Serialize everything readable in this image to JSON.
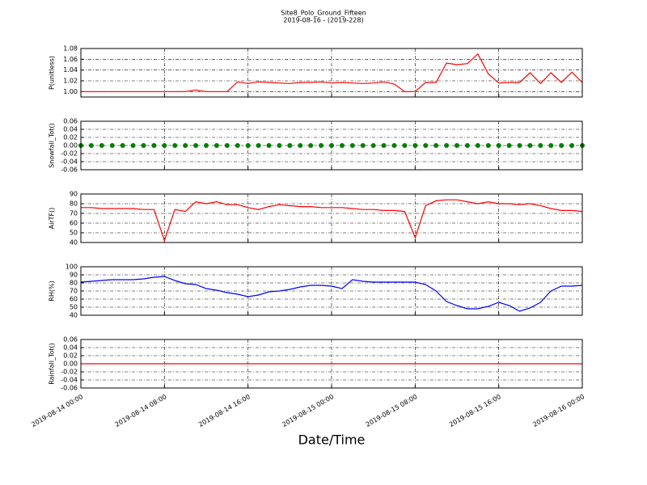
{
  "chart_data": {
    "title": "Site8_Polo_Ground_Fifteen",
    "subtitle": "2019-08-16 - (2019-228)",
    "xlabel": "Date/Time",
    "x": [
      "2019-08-14 00:00",
      "2019-08-14 01:00",
      "2019-08-14 02:00",
      "2019-08-14 03:00",
      "2019-08-14 04:00",
      "2019-08-14 05:00",
      "2019-08-14 06:00",
      "2019-08-14 07:00",
      "2019-08-14 08:00",
      "2019-08-14 09:00",
      "2019-08-14 10:00",
      "2019-08-14 11:00",
      "2019-08-14 12:00",
      "2019-08-14 13:00",
      "2019-08-14 14:00",
      "2019-08-14 15:00",
      "2019-08-14 16:00",
      "2019-08-14 17:00",
      "2019-08-14 18:00",
      "2019-08-14 19:00",
      "2019-08-14 20:00",
      "2019-08-14 21:00",
      "2019-08-14 22:00",
      "2019-08-14 23:00",
      "2019-08-15 00:00",
      "2019-08-15 01:00",
      "2019-08-15 02:00",
      "2019-08-15 03:00",
      "2019-08-15 04:00",
      "2019-08-15 05:00",
      "2019-08-15 06:00",
      "2019-08-15 07:00",
      "2019-08-15 08:00",
      "2019-08-15 09:00",
      "2019-08-15 10:00",
      "2019-08-15 11:00",
      "2019-08-15 12:00",
      "2019-08-15 13:00",
      "2019-08-15 14:00",
      "2019-08-15 15:00",
      "2019-08-15 16:00",
      "2019-08-15 17:00",
      "2019-08-15 18:00",
      "2019-08-15 19:00",
      "2019-08-15 20:00",
      "2019-08-15 21:00",
      "2019-08-15 22:00",
      "2019-08-15 23:00",
      "2019-08-16 00:00"
    ],
    "xlim": [
      "2019-08-14 00:00",
      "2019-08-16 00:00"
    ],
    "xticks": [
      "2019-08-14 00:00",
      "2019-08-14 08:00",
      "2019-08-14 16:00",
      "2019-08-15 00:00",
      "2019-08-15 08:00",
      "2019-08-15 16:00",
      "2019-08-16 00:00"
    ],
    "grid": true,
    "panels": [
      {
        "type": "line",
        "ylabel": "P(unitless)",
        "ylim": [
          0.99,
          1.08
        ],
        "yticks": [
          {
            "value": 1.0,
            "label": "1.00"
          },
          {
            "value": 1.02,
            "label": "1.02"
          },
          {
            "value": 1.04,
            "label": "1.04"
          },
          {
            "value": 1.06,
            "label": "1.06"
          },
          {
            "value": 1.08,
            "label": "1.08"
          }
        ],
        "series": [
          {
            "color": "#ff0000",
            "values": [
              1.0,
              1.0,
              1.0,
              1.0,
              1.0,
              1.0,
              1.0,
              1.0,
              1.0,
              1.0,
              1.0,
              1.003,
              1.0,
              1.0,
              1.0,
              1.018,
              1.015,
              1.018,
              1.017,
              1.016,
              1.015,
              1.017,
              1.017,
              1.018,
              1.016,
              1.017,
              1.016,
              1.015,
              1.016,
              1.018,
              1.014,
              1.0,
              1.0,
              1.017,
              1.017,
              1.053,
              1.05,
              1.052,
              1.07,
              1.033,
              1.016,
              1.017,
              1.017,
              1.035,
              1.015,
              1.035,
              1.017,
              1.036,
              1.017
            ]
          }
        ]
      },
      {
        "type": "scatter",
        "ylabel": "Snowfall_Tot()",
        "ylim": [
          -0.06,
          0.06
        ],
        "yticks": [
          {
            "value": -0.06,
            "label": "-0.06"
          },
          {
            "value": -0.04,
            "label": "-0.04"
          },
          {
            "value": -0.02,
            "label": "-0.02"
          },
          {
            "value": 0,
            "label": "0.00"
          },
          {
            "value": 0.02,
            "label": "0.02"
          },
          {
            "value": 0.04,
            "label": "0.04"
          },
          {
            "value": 0.06,
            "label": "0.06"
          }
        ],
        "series": [
          {
            "color": "#008000",
            "values": [
              0,
              0,
              0,
              0,
              0,
              0,
              0,
              0,
              0,
              0,
              0,
              0,
              0,
              0,
              0,
              0,
              0,
              0,
              0,
              0,
              0,
              0,
              0,
              0,
              0,
              0,
              0,
              0,
              0,
              0,
              0,
              0,
              0,
              0,
              0,
              0,
              0,
              0,
              0,
              0,
              0,
              0,
              0,
              0,
              0,
              0,
              0,
              0,
              0
            ]
          }
        ]
      },
      {
        "type": "line",
        "ylabel": "AirTF()",
        "ylim": [
          40,
          90
        ],
        "yticks": [
          40,
          50,
          60,
          70,
          80,
          90
        ],
        "series": [
          {
            "color": "#ff0000",
            "values": [
              76,
              76,
              75,
              75,
              75,
              75,
              74,
              74,
              42,
              74,
              72,
              82,
              80,
              82,
              79,
              79,
              76,
              74,
              77,
              79,
              78,
              77,
              77,
              76,
              76,
              76,
              75,
              74,
              74,
              73,
              73,
              72,
              45,
              78,
              83,
              84,
              84,
              82,
              80,
              82,
              80,
              80,
              79,
              80,
              78,
              75,
              73,
              73,
              72
            ]
          }
        ]
      },
      {
        "type": "line",
        "ylabel": "RH(%)",
        "ylim": [
          40,
          100
        ],
        "yticks": [
          40,
          50,
          60,
          70,
          80,
          90,
          100
        ],
        "series": [
          {
            "color": "#0000ff",
            "values": [
              81,
              82,
              83,
              84,
              84,
              84,
              85,
              87,
              88,
              83,
              79,
              78,
              73,
              71,
              68,
              66,
              63,
              65,
              69,
              70,
              72,
              75,
              77,
              77,
              76,
              73,
              84,
              82,
              81,
              81,
              81,
              81,
              81,
              78,
              70,
              57,
              52,
              48,
              48,
              51,
              56,
              52,
              45,
              49,
              56,
              70,
              76,
              76,
              77
            ]
          }
        ]
      },
      {
        "type": "line",
        "ylabel": "Rainfall_Tot()",
        "ylim": [
          -0.06,
          0.06
        ],
        "yticks": [
          {
            "value": -0.06,
            "label": "-0.06"
          },
          {
            "value": -0.04,
            "label": "-0.04"
          },
          {
            "value": -0.02,
            "label": "-0.02"
          },
          {
            "value": 0,
            "label": "0.00"
          },
          {
            "value": 0.02,
            "label": "0.02"
          },
          {
            "value": 0.04,
            "label": "0.04"
          },
          {
            "value": 0.06,
            "label": "0.06"
          }
        ],
        "series": [
          {
            "color": "#ff0000",
            "values": [
              0,
              0,
              0,
              0,
              0,
              0,
              0,
              0,
              0,
              0,
              0,
              0,
              0,
              0,
              0,
              0,
              0,
              0,
              0,
              0,
              0,
              0,
              0,
              0,
              0,
              0,
              0,
              0,
              0,
              0,
              0,
              0,
              0,
              0,
              0,
              0,
              0,
              0,
              0,
              0,
              0,
              0,
              0,
              0,
              0,
              0,
              0,
              0,
              0
            ]
          }
        ]
      }
    ]
  }
}
